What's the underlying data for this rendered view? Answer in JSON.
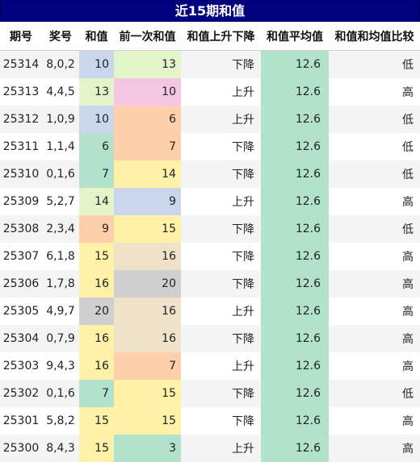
{
  "title": "近15期和值",
  "headers": [
    "期号",
    "奖号",
    "和值",
    "前一次和值",
    "和值上升下降",
    "和值平均值",
    "和值和均值比较"
  ],
  "rows": [
    {
      "qh": "25314",
      "jh": "8,0,2",
      "hz": "10",
      "prev": "13",
      "dir": "下降",
      "avg": "12.6",
      "cmp": "低"
    },
    {
      "qh": "25313",
      "jh": "4,4,5",
      "hz": "13",
      "prev": "10",
      "dir": "上升",
      "avg": "12.6",
      "cmp": "高"
    },
    {
      "qh": "25312",
      "jh": "1,0,9",
      "hz": "10",
      "prev": "6",
      "dir": "上升",
      "avg": "12.6",
      "cmp": "低"
    },
    {
      "qh": "25311",
      "jh": "1,1,4",
      "hz": "6",
      "prev": "7",
      "dir": "下降",
      "avg": "12.6",
      "cmp": "低"
    },
    {
      "qh": "25310",
      "jh": "0,1,6",
      "hz": "7",
      "prev": "14",
      "dir": "下降",
      "avg": "12.6",
      "cmp": "低"
    },
    {
      "qh": "25309",
      "jh": "5,2,7",
      "hz": "14",
      "prev": "9",
      "dir": "上升",
      "avg": "12.6",
      "cmp": "高"
    },
    {
      "qh": "25308",
      "jh": "2,3,4",
      "hz": "9",
      "prev": "15",
      "dir": "下降",
      "avg": "12.6",
      "cmp": "低"
    },
    {
      "qh": "25307",
      "jh": "6,1,8",
      "hz": "15",
      "prev": "16",
      "dir": "下降",
      "avg": "12.6",
      "cmp": "高"
    },
    {
      "qh": "25306",
      "jh": "1,7,8",
      "hz": "16",
      "prev": "20",
      "dir": "下降",
      "avg": "12.6",
      "cmp": "高"
    },
    {
      "qh": "25305",
      "jh": "4,9,7",
      "hz": "20",
      "prev": "16",
      "dir": "上升",
      "avg": "12.6",
      "cmp": "高"
    },
    {
      "qh": "25304",
      "jh": "0,7,9",
      "hz": "16",
      "prev": "16",
      "dir": "下降",
      "avg": "12.6",
      "cmp": "高"
    },
    {
      "qh": "25303",
      "jh": "9,4,3",
      "hz": "16",
      "prev": "7",
      "dir": "上升",
      "avg": "12.6",
      "cmp": "高"
    },
    {
      "qh": "25302",
      "jh": "0,1,6",
      "hz": "7",
      "prev": "15",
      "dir": "下降",
      "avg": "12.6",
      "cmp": "低"
    },
    {
      "qh": "25301",
      "jh": "5,8,2",
      "hz": "15",
      "prev": "15",
      "dir": "下降",
      "avg": "12.6",
      "cmp": "高"
    },
    {
      "qh": "25300",
      "jh": "8,4,3",
      "hz": "15",
      "prev": "3",
      "dir": "上升",
      "avg": "12.6",
      "cmp": "高"
    }
  ],
  "colors": {
    "title_bg": "#000080",
    "avg_bg": "#b2e2cc",
    "row_alt_bg": "#f4f4f4"
  }
}
